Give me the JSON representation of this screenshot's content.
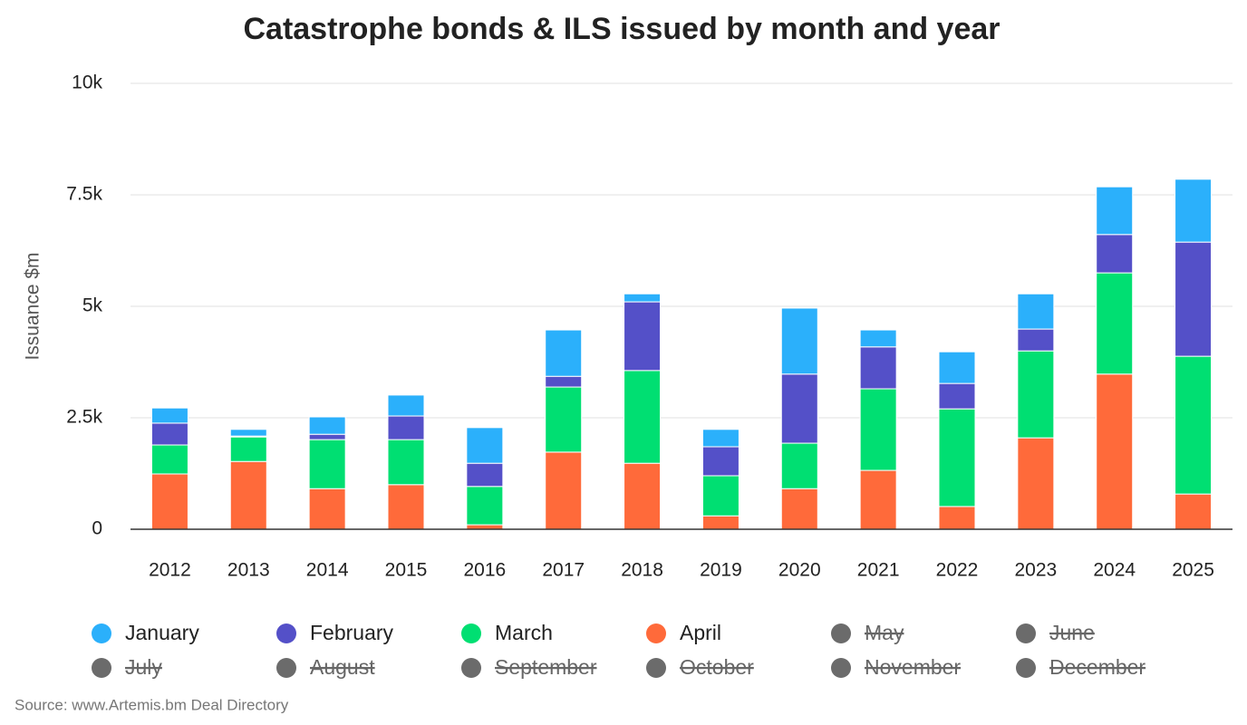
{
  "chart_data": {
    "type": "stacked_bar",
    "title": "Catastrophe bonds & ILS issued by month and year",
    "y_label": "Issuance $m",
    "source": "Source: www.Artemis.bm Deal Directory",
    "categories": [
      "2012",
      "2013",
      "2014",
      "2015",
      "2016",
      "2017",
      "2018",
      "2019",
      "2020",
      "2021",
      "2022",
      "2023",
      "2024",
      "2025"
    ],
    "series": [
      {
        "name": "January",
        "color": "#2bb0fb",
        "values": [
          340,
          150,
          390,
          470,
          800,
          1040,
          180,
          390,
          1480,
          380,
          710,
          790,
          1070,
          1410
        ]
      },
      {
        "name": "February",
        "color": "#5450c8",
        "values": [
          490,
          20,
          120,
          530,
          520,
          240,
          1540,
          650,
          1550,
          940,
          570,
          490,
          860,
          2560
        ]
      },
      {
        "name": "March",
        "color": "#00df72",
        "values": [
          650,
          550,
          1100,
          1010,
          860,
          1460,
          2080,
          900,
          1020,
          1830,
          2190,
          1950,
          2270,
          3090
        ]
      },
      {
        "name": "April",
        "color": "#ff6a3a",
        "values": [
          1240,
          1520,
          910,
          1000,
          100,
          1730,
          1480,
          300,
          910,
          1320,
          510,
          2050,
          3480,
          790
        ]
      }
    ],
    "hidden_series": [
      {
        "name": "May"
      },
      {
        "name": "June"
      },
      {
        "name": "July"
      },
      {
        "name": "August"
      },
      {
        "name": "September"
      },
      {
        "name": "October"
      },
      {
        "name": "November"
      },
      {
        "name": "December"
      }
    ],
    "hidden_color": "#6b6b6b",
    "ylim": [
      0,
      10000
    ],
    "yticks": [
      0,
      {
        "value": 2500,
        "label": "2.5k"
      },
      {
        "value": 5000,
        "label": "5k"
      },
      {
        "value": 7500,
        "label": "7.5k"
      },
      {
        "value": 10000,
        "label": "10k"
      }
    ],
    "grid": true
  }
}
